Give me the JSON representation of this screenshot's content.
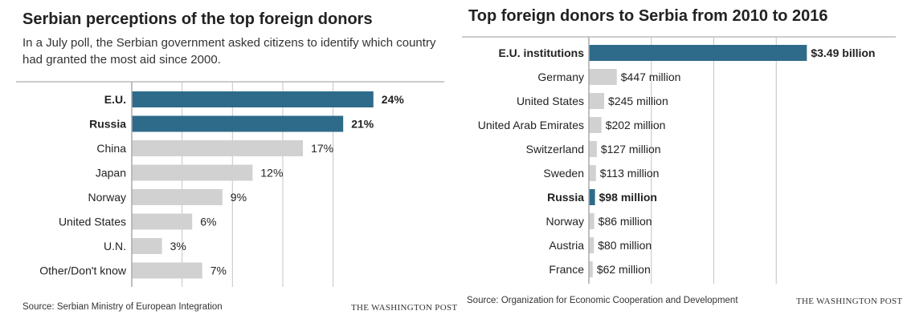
{
  "colors": {
    "highlight": "#2e6b8a",
    "neutral": "#d1d1d1",
    "grid": "#c4c4c4",
    "axis": "#aaaaaa"
  },
  "left": {
    "title": "Serbian perceptions of the top foreign donors",
    "subtitle": "In a July poll, the Serbian government asked citizens to identify which country had granted the most aid since 2000.",
    "source": "Source: Serbian Ministry of European Integration",
    "brand": "THE WASHINGTON POST"
  },
  "right": {
    "title": "Top foreign donors to Serbia from 2010 to 2016",
    "source": "Source: Organization for Economic Cooperation and Development",
    "brand": "THE WASHINGTON POST"
  },
  "chart_data": [
    {
      "type": "bar",
      "orientation": "horizontal",
      "title": "Serbian perceptions of the top foreign donors",
      "subtitle": "In a July poll, the Serbian government asked citizens to identify which country had granted the most aid since 2000.",
      "categories": [
        "E.U.",
        "Russia",
        "China",
        "Japan",
        "Norway",
        "United States",
        "U.N.",
        "Other/Don't know"
      ],
      "values": [
        24,
        21,
        17,
        12,
        9,
        6,
        3,
        7
      ],
      "labels": [
        "24%",
        "21%",
        "17%",
        "12%",
        "9%",
        "6%",
        "3%",
        "7%"
      ],
      "highlighted": [
        "E.U.",
        "Russia"
      ],
      "xlim": [
        0,
        30
      ],
      "gridlines": [
        0,
        5,
        10,
        15,
        20
      ],
      "grid": true
    },
    {
      "type": "bar",
      "orientation": "horizontal",
      "title": "Top foreign donors to Serbia from 2010 to 2016",
      "categories": [
        "E.U. institutions",
        "Germany",
        "United States",
        "United Arab Emirates",
        "Switzerland",
        "Sweden",
        "Russia",
        "Norway",
        "Austria",
        "France"
      ],
      "values": [
        3490,
        447,
        245,
        202,
        127,
        113,
        98,
        86,
        80,
        62
      ],
      "unit": "millions of dollars",
      "labels": [
        "$3.49 billion",
        "$447 million",
        "$245 million",
        "$202 million",
        "$127 million",
        "$113 million",
        "$98 million",
        "$86 million",
        "$80 million",
        "$62 million"
      ],
      "highlighted": [
        "E.U. institutions",
        "Russia"
      ],
      "xlim": [
        0,
        4000
      ],
      "gridlines": [
        0,
        1000,
        2000,
        3000
      ],
      "grid": true
    }
  ]
}
